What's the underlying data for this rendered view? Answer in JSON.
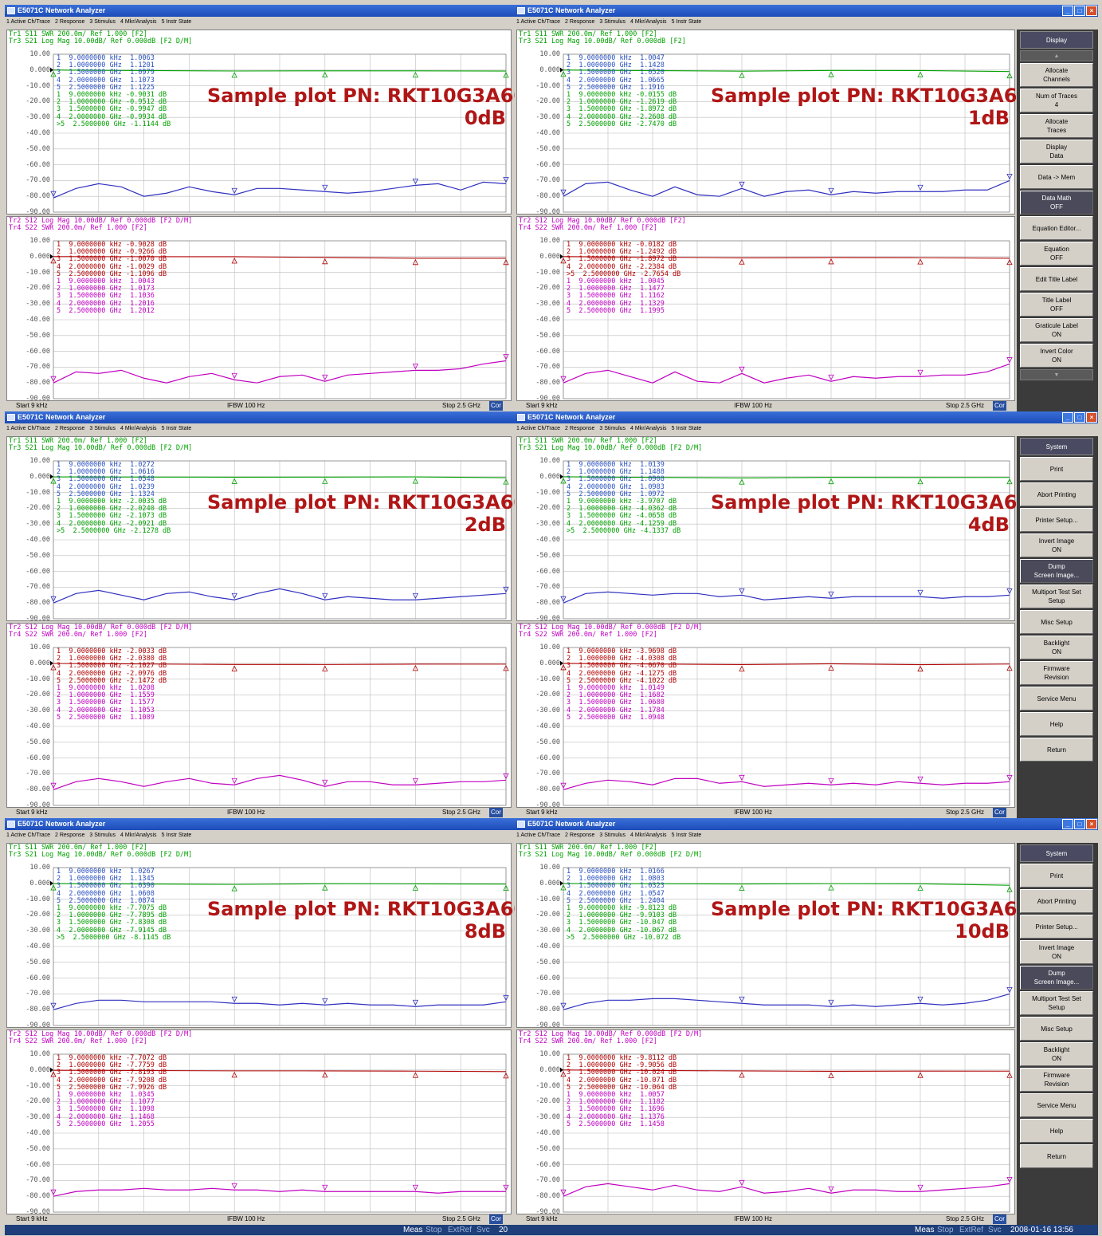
{
  "title": "E5071C Network Analyzer",
  "menu": [
    "1 Active Ch/Trace",
    "2 Response",
    "3 Stimulus",
    "4 Mkr/Analysis",
    "5 Instr State"
  ],
  "ylabels": [
    "10.00",
    "0.000",
    "-10.00",
    "-20.00",
    "-30.00",
    "-40.00",
    "-50.00",
    "-60.00",
    "-70.00",
    "-80.00",
    "-90.00"
  ],
  "colors": {
    "swr_top": "#00a000",
    "s21": "#3030c0",
    "s12": "#c000c0",
    "swr_bottom": "#b00000"
  },
  "status": {
    "start": "Start 9 kHz",
    "ifbw": "IFBW 100 Hz",
    "stop": "Stop 2.5 GHz",
    "cor": "Cor"
  },
  "watermark_line1": "Sample plot PN: RKT10G3A60",
  "panels": [
    {
      "watermark_line2": "0dB",
      "upper_h1": "Tr1 S11 SWR 200.0m/ Ref 1.000 [F2]",
      "upper_h2": "Tr3 S21 Log Mag 10.00dB/ Ref 0.000dB [F2 D/M]",
      "lower_h1": "Tr2 S12 Log Mag 10.00dB/ Ref 0.000dB [F2 D/M]",
      "lower_h2": "Tr4 S22 SWR 200.0m/ Ref 1.000 [F2]",
      "upper_markers": [
        "1  9.0000000 kHz  1.0063",
        "2  1.0000000 GHz  1.1201",
        "3  1.5000000 GHz  1.0979",
        "4  2.0000000 GHz  1.1073",
        "5  2.5000000 GHz  1.1225",
        "1  9.0000000 kHz -0.9031 dB",
        "2  1.0000000 GHz -0.9512 dB",
        "3  1.5000000 GHz -0.9947 dB",
        "4  2.0000000 GHz -0.9934 dB",
        ">5  2.5000000 GHz -1.1144 dB"
      ],
      "lower_markers": [
        "1  9.0000000 kHz -0.9028 dB",
        "2  1.0000000 GHz -0.9266 dB",
        "3  1.5000000 GHz -1.0070 dB",
        "4  2.0000000 GHz -1.0029 dB",
        "5  2.5000000 GHz -1.1096 dB",
        "1  9.0000000 kHz  1.0043",
        "2  1.0000000 GHz  1.0173",
        "3  1.5000000 GHz  1.1036",
        "4  2.0000000 GHz  1.2016",
        "5  2.5000000 GHz  1.2012"
      ],
      "s21_y": [
        -81,
        -75,
        -72,
        -74,
        -80,
        -78,
        -74,
        -77,
        -79,
        -75,
        -75,
        -76,
        -77,
        -78,
        -77,
        -75,
        -73,
        -72,
        -76,
        -71,
        -72
      ],
      "s12_y": [
        -80,
        -73,
        -74,
        -72,
        -77,
        -80,
        -76,
        -74,
        -78,
        -80,
        -76,
        -75,
        -79,
        -75,
        -74,
        -73,
        -72,
        -72,
        -71,
        -68,
        -66
      ],
      "swr_top": [
        1.006,
        1.12,
        1.098,
        1.107,
        1.123
      ],
      "swr_bottom": [
        1.004,
        1.017,
        1.104,
        1.202,
        1.201
      ]
    },
    {
      "watermark_line2": "1dB",
      "upper_h1": "Tr1 S11 SWR 200.0m/ Ref 1.000 [F2]",
      "upper_h2": "Tr3 S21 Log Mag 10.00dB/ Ref 0.000dB [F2]",
      "lower_h1": "Tr2 S12 Log Mag 10.00dB/ Ref 0.000dB [F2]",
      "lower_h2": "Tr4 S22 SWR 200.0m/ Ref 1.000 [F2]",
      "upper_markers": [
        "1  9.0000000 kHz  1.0047",
        "2  1.0000000 GHz  1.1428",
        "3  1.5000000 GHz  1.0520",
        "4  2.0000000 GHz  1.0665",
        "5  2.5000000 GHz  1.1916",
        "1  9.0000000 kHz -0.0155 dB",
        "2  1.0000000 GHz -1.2619 dB",
        "3  1.5000000 GHz -1.8972 dB",
        "4  2.0000000 GHz -2.2608 dB",
        "5  2.5000000 GHz -2.7470 dB"
      ],
      "lower_markers": [
        "1  9.0000000 kHz -0.0182 dB",
        "2  1.0000000 GHz -1.2492 dB",
        "3  1.5000000 GHz -1.8972 dB",
        "4  2.0000000 GHz -2.2384 dB",
        ">5  2.5000000 GHz -2.7654 dB",
        "1  9.0000000 kHz  1.0045",
        "2  1.0000000 GHz  1.1477",
        "3  1.5000000 GHz  1.1162",
        "4  2.0000000 GHz  1.1329",
        "5  2.5000000 GHz  1.1995"
      ],
      "s21_y": [
        -80,
        -72,
        -71,
        -76,
        -80,
        -74,
        -79,
        -80,
        -75,
        -80,
        -77,
        -76,
        -79,
        -77,
        -78,
        -77,
        -77,
        -77,
        -76,
        -76,
        -70
      ],
      "s12_y": [
        -80,
        -74,
        -72,
        -76,
        -80,
        -73,
        -79,
        -80,
        -74,
        -80,
        -77,
        -75,
        -79,
        -76,
        -77,
        -76,
        -76,
        -75,
        -75,
        -73,
        -68
      ],
      "swr_top": [
        1.005,
        1.143,
        1.052,
        1.067,
        1.192
      ],
      "swr_bottom": [
        1.005,
        1.148,
        1.116,
        1.133,
        1.2
      ]
    },
    {
      "watermark_line2": "2dB",
      "upper_h1": "Tr1 S11 SWR 200.0m/ Ref 1.000 [F2]",
      "upper_h2": "Tr3 S21 Log Mag 10.00dB/ Ref 0.000dB [F2 D/M]",
      "lower_h1": "Tr2 S12 Log Mag 10.00dB/ Ref 0.000dB [F2 D/M]",
      "lower_h2": "Tr4 S22 SWR 200.0m/ Ref 1.000 [F2]",
      "upper_markers": [
        "1  9.0000000 kHz  1.0272",
        "2  1.0000000 GHz  1.0616",
        "3  1.5000000 GHz  1.0548",
        "4  2.0000000 GHz  1.0239",
        "5  2.5000000 GHz  1.1324",
        "1  9.0000000 kHz -2.0035 dB",
        "2  1.0000000 GHz -2.0240 dB",
        "3  1.5000000 GHz -2.1073 dB",
        "4  2.0000000 GHz -2.0921 dB",
        ">5  2.5000000 GHz -2.1278 dB"
      ],
      "lower_markers": [
        "1  9.0000000 kHz -2.0033 dB",
        "2  1.0000000 GHz -2.0380 dB",
        "3  1.5000000 GHz -2.1027 dB",
        "4  2.0000000 GHz -2.0976 dB",
        "5  2.5000000 GHz -2.1472 dB",
        "1  9.0000000 kHz  1.0208",
        "2  1.0000000 GHz  1.1559",
        "3  1.5000000 GHz  1.1577",
        "4  2.0000000 GHz  1.1053",
        "5  2.5000000 GHz  1.1089"
      ],
      "s21_y": [
        -80,
        -74,
        -72,
        -75,
        -78,
        -74,
        -73,
        -76,
        -78,
        -74,
        -71,
        -74,
        -78,
        -76,
        -77,
        -78,
        -78,
        -77,
        -76,
        -75,
        -74
      ],
      "s12_y": [
        -80,
        -75,
        -73,
        -75,
        -78,
        -75,
        -73,
        -76,
        -77,
        -73,
        -71,
        -74,
        -78,
        -75,
        -75,
        -77,
        -77,
        -76,
        -75,
        -75,
        -74
      ],
      "swr_top": [
        1.027,
        1.062,
        1.055,
        1.024,
        1.132
      ],
      "swr_bottom": [
        1.021,
        1.156,
        1.158,
        1.105,
        1.109
      ]
    },
    {
      "watermark_line2": "4dB",
      "upper_h1": "Tr1 S11 SWR 200.0m/ Ref 1.000 [F2]",
      "upper_h2": "Tr3 S21 Log Mag 10.00dB/ Ref 0.000dB [F2 D/M]",
      "lower_h1": "Tr2 S12 Log Mag 10.00dB/ Ref 0.000dB [F2 D/M]",
      "lower_h2": "Tr4 S22 SWR 200.0m/ Ref 1.000 [F2]",
      "upper_markers": [
        "1  9.0000000 kHz  1.0139",
        "2  1.0000000 GHz  1.1488",
        "3  1.5000000 GHz  1.0908",
        "4  2.0000000 GHz  1.0983",
        "5  2.5000000 GHz  1.0972",
        "1  9.0000000 kHz -3.9707 dB",
        "2  1.0000000 GHz -4.0362 dB",
        "3  1.5000000 GHz -4.0658 dB",
        "4  2.0000000 GHz -4.1259 dB",
        ">5  2.5000000 GHz -4.1337 dB"
      ],
      "lower_markers": [
        "1  9.0000000 kHz -3.9698 dB",
        "2  1.0000000 GHz -4.0308 dB",
        "3  1.5000000 GHz -4.0670 dB",
        "4  2.0000000 GHz -4.1275 dB",
        "5  2.5000000 GHz -4.1022 dB",
        "1  9.0000000 kHz  1.0149",
        "2  1.0000000 GHz  1.1682",
        "3  1.5000000 GHz  1.0680",
        "4  2.0000000 GHz  1.1784",
        "5  2.5000000 GHz  1.0948"
      ],
      "s21_y": [
        -80,
        -74,
        -73,
        -74,
        -75,
        -74,
        -74,
        -76,
        -75,
        -78,
        -77,
        -76,
        -77,
        -76,
        -76,
        -76,
        -76,
        -77,
        -76,
        -76,
        -75
      ],
      "s12_y": [
        -80,
        -76,
        -74,
        -75,
        -77,
        -73,
        -73,
        -76,
        -75,
        -78,
        -77,
        -76,
        -77,
        -76,
        -77,
        -75,
        -76,
        -77,
        -76,
        -76,
        -75
      ],
      "swr_top": [
        1.014,
        1.149,
        1.091,
        1.098,
        1.097
      ],
      "swr_bottom": [
        1.015,
        1.168,
        1.068,
        1.178,
        1.095
      ]
    },
    {
      "watermark_line2": "8dB",
      "upper_h1": "Tr1 S11 SWR 200.0m/ Ref 1.000 [F2]",
      "upper_h2": "Tr3 S21 Log Mag 10.00dB/ Ref 0.000dB [F2 D/M]",
      "lower_h1": "Tr2 S12 Log Mag 10.00dB/ Ref 0.000dB [F2 D/M]",
      "lower_h2": "Tr4 S22 SWR 200.0m/ Ref 1.000 [F2]",
      "upper_markers": [
        "1  9.0000000 kHz  1.0267",
        "2  1.0000000 GHz  1.1345",
        "3  1.5000000 GHz  1.0390",
        "4  2.0000000 GHz  1.0608",
        "5  2.5000000 GHz  1.0874",
        "1  9.0000000 kHz -7.7075 dB",
        "2  1.0000000 GHz -7.7895 dB",
        "3  1.5000000 GHz -7.8308 dB",
        "4  2.0000000 GHz -7.9145 dB",
        ">5  2.5000000 GHz -8.1145 dB"
      ],
      "lower_markers": [
        "1  9.0000000 kHz -7.7072 dB",
        "2  1.0000000 GHz -7.7759 dB",
        "3  1.5000000 GHz -7.8193 dB",
        "4  2.0000000 GHz -7.9208 dB",
        "5  2.5000000 GHz -7.9926 dB",
        "1  9.0000000 kHz  1.0345",
        "2  1.0000000 GHz  1.1077",
        "3  1.5000000 GHz  1.1098",
        "4  2.0000000 GHz  1.1468",
        "5  2.5000000 GHz  1.2055"
      ],
      "s21_y": [
        -80,
        -76,
        -74,
        -74,
        -75,
        -75,
        -75,
        -75,
        -76,
        -76,
        -77,
        -76,
        -77,
        -76,
        -77,
        -77,
        -78,
        -77,
        -77,
        -77,
        -75
      ],
      "s12_y": [
        -80,
        -77,
        -76,
        -76,
        -75,
        -76,
        -76,
        -75,
        -76,
        -76,
        -77,
        -76,
        -77,
        -77,
        -77,
        -77,
        -77,
        -78,
        -77,
        -77,
        -77
      ],
      "swr_top": [
        1.027,
        1.135,
        1.039,
        1.061,
        1.087
      ],
      "swr_bottom": [
        1.035,
        1.108,
        1.11,
        1.147,
        1.206
      ]
    },
    {
      "watermark_line2": "10dB",
      "upper_h1": "Tr1 S11 SWR 200.0m/ Ref 1.000 [F2]",
      "upper_h2": "Tr3 S21 Log Mag 10.00dB/ Ref 0.000dB [F2 D/M]",
      "lower_h1": "Tr2 S12 Log Mag 10.00dB/ Ref 0.000dB [F2 D/M]",
      "lower_h2": "Tr4 S22 SWR 200.0m/ Ref 1.000 [F2]",
      "upper_markers": [
        "1  9.0000000 kHz  1.0166",
        "2  1.0000000 GHz  1.0803",
        "3  1.5000000 GHz  1.0323",
        "4  2.0000000 GHz  1.0547",
        "5  2.5000000 GHz  1.2404",
        "1  9.0000000 kHz -9.8123 dB",
        "2  1.0000000 GHz -9.9103 dB",
        "3  1.5000000 GHz -10.047 dB",
        "4  2.0000000 GHz -10.067 dB",
        ">5  2.5000000 GHz -10.072 dB"
      ],
      "lower_markers": [
        "1  9.0000000 kHz -9.8112 dB",
        "2  1.0000000 GHz -9.9056 dB",
        "3  1.5000000 GHz -10.024 dB",
        "4  2.0000000 GHz -10.071 dB",
        "5  2.5000000 GHz -10.064 dB",
        "1  9.0000000 kHz  1.0057",
        "2  1.0000000 GHz  1.1182",
        "3  1.5000000 GHz  1.1696",
        "4  2.0000000 GHz  1.1376",
        "5  2.5000000 GHz  1.1458"
      ],
      "s21_y": [
        -80,
        -76,
        -74,
        -74,
        -73,
        -73,
        -74,
        -75,
        -76,
        -77,
        -77,
        -77,
        -78,
        -77,
        -78,
        -77,
        -76,
        -77,
        -76,
        -74,
        -70
      ],
      "s12_y": [
        -80,
        -74,
        -72,
        -74,
        -76,
        -73,
        -76,
        -77,
        -74,
        -78,
        -77,
        -75,
        -78,
        -76,
        -76,
        -77,
        -77,
        -76,
        -75,
        -74,
        -72
      ],
      "swr_top": [
        1.017,
        1.08,
        1.032,
        1.055,
        1.24
      ],
      "swr_bottom": [
        1.006,
        1.118,
        1.17,
        1.138,
        1.146
      ]
    }
  ],
  "softkeys_display": [
    {
      "l1": "Display",
      "l2": ""
    },
    {
      "l1": "",
      "l2": ""
    },
    {
      "l1": "Allocate",
      "l2": "Channels"
    },
    {
      "l1": "Num of Traces",
      "l2": "4"
    },
    {
      "l1": "Allocate",
      "l2": "Traces"
    },
    {
      "l1": "Display",
      "l2": "Data"
    },
    {
      "l1": "Data -> Mem",
      "l2": ""
    },
    {
      "l1": "Data Math",
      "l2": "OFF"
    },
    {
      "l1": "Equation Editor...",
      "l2": ""
    },
    {
      "l1": "Equation",
      "l2": "OFF"
    },
    {
      "l1": "Edit Title Label",
      "l2": ""
    },
    {
      "l1": "Title Label",
      "l2": "OFF"
    },
    {
      "l1": "Graticule Label",
      "l2": "ON"
    },
    {
      "l1": "Invert Color",
      "l2": "ON"
    },
    {
      "l1": "",
      "l2": ""
    }
  ],
  "softkeys_system": [
    {
      "l1": "System",
      "l2": ""
    },
    {
      "l1": "Print",
      "l2": ""
    },
    {
      "l1": "Abort Printing",
      "l2": ""
    },
    {
      "l1": "Printer Setup...",
      "l2": ""
    },
    {
      "l1": "Invert Image",
      "l2": "ON"
    },
    {
      "l1": "Dump",
      "l2": "Screen Image..."
    },
    {
      "l1": "Multiport Test Set",
      "l2": "Setup"
    },
    {
      "l1": "Misc Setup",
      "l2": ""
    },
    {
      "l1": "Backlight",
      "l2": "ON"
    },
    {
      "l1": "Firmware",
      "l2": "Revision"
    },
    {
      "l1": "Service Menu",
      "l2": ""
    },
    {
      "l1": "Help",
      "l2": ""
    },
    {
      "l1": "Return",
      "l2": ""
    }
  ],
  "bottom_status": {
    "meas": "Meas",
    "stop": "Stop",
    "extref": "ExtRef",
    "svc": "Svc",
    "partial": "20",
    "datetime": "2008-01-16 13:56"
  }
}
